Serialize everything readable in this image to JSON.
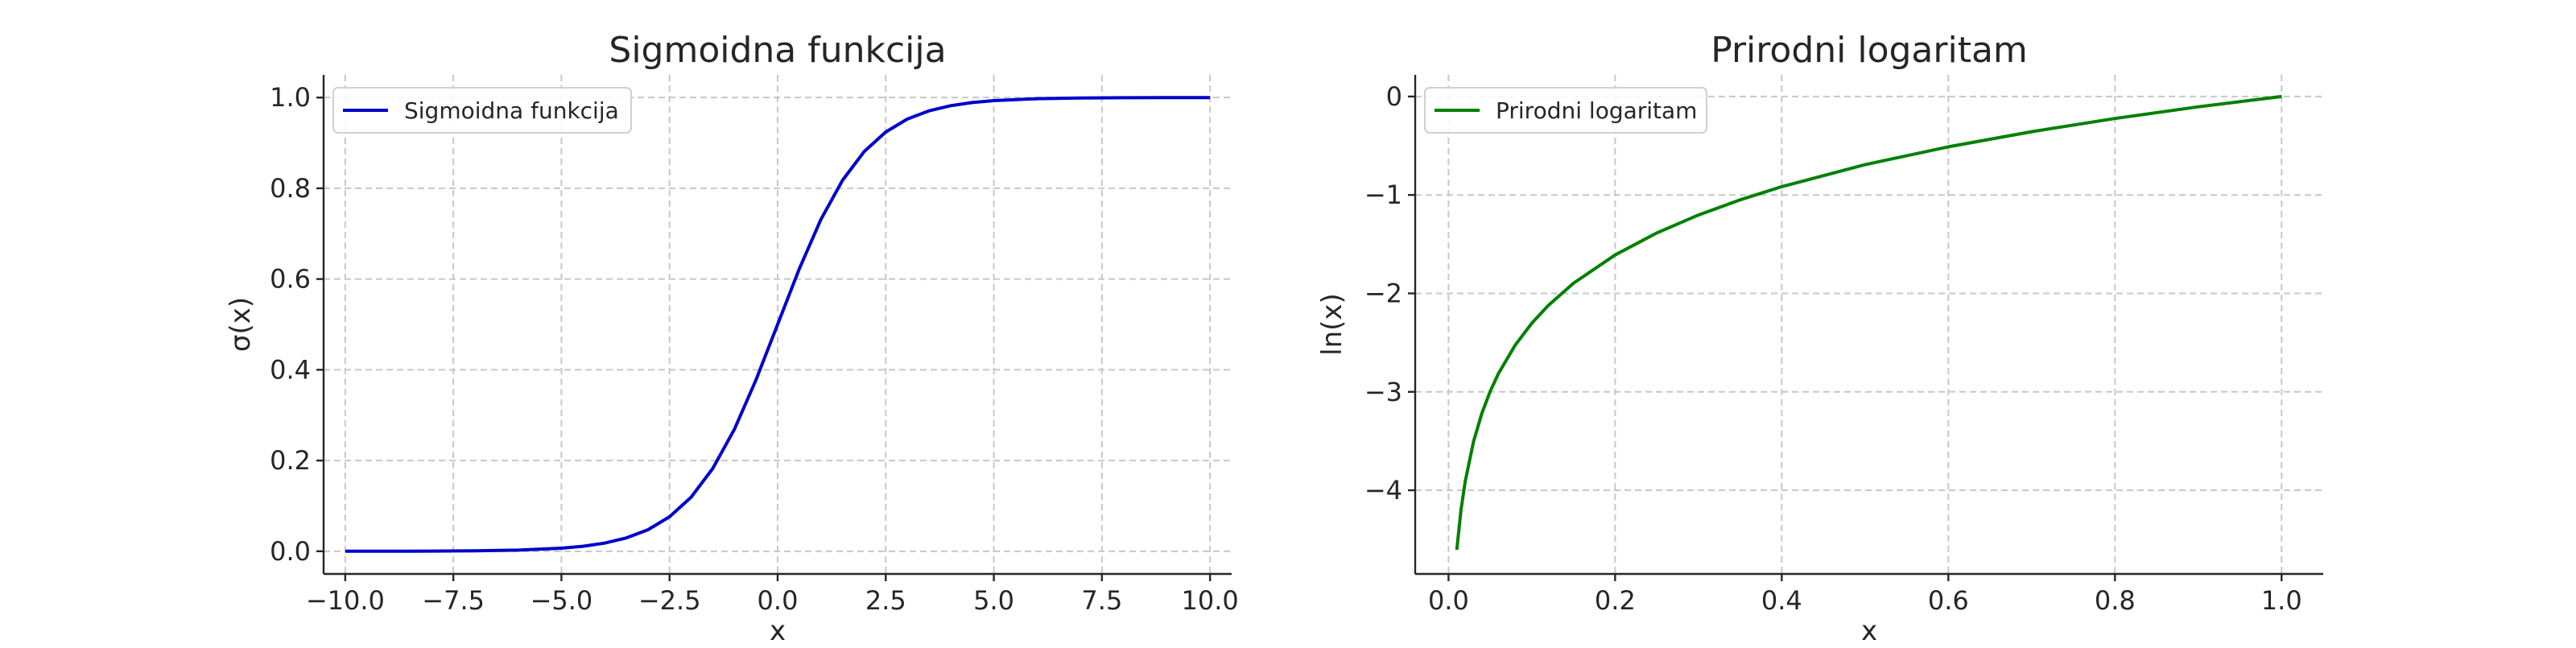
{
  "chart_data": [
    {
      "type": "line",
      "title": "Sigmoidna funkcija",
      "xlabel": "x",
      "ylabel": "σ(x)",
      "xlim": [
        -10.5,
        10.5
      ],
      "ylim": [
        -0.05,
        1.05
      ],
      "xticks": [
        -10.0,
        -7.5,
        -5.0,
        -2.5,
        0.0,
        2.5,
        5.0,
        7.5,
        10.0
      ],
      "xtick_labels": [
        "−10.0",
        "−7.5",
        "−5.0",
        "−2.5",
        "0.0",
        "2.5",
        "5.0",
        "7.5",
        "10.0"
      ],
      "yticks": [
        0.0,
        0.2,
        0.4,
        0.6,
        0.8,
        1.0
      ],
      "ytick_labels": [
        "0.0",
        "0.2",
        "0.4",
        "0.6",
        "0.8",
        "1.0"
      ],
      "grid": true,
      "legend": "upper-left",
      "series": [
        {
          "name": "Sigmoidna funkcija",
          "color": "#0000cc",
          "x": [
            -10,
            -9,
            -8,
            -7,
            -6,
            -5,
            -4.5,
            -4,
            -3.5,
            -3,
            -2.5,
            -2,
            -1.5,
            -1,
            -0.5,
            0,
            0.5,
            1,
            1.5,
            2,
            2.5,
            3,
            3.5,
            4,
            4.5,
            5,
            6,
            7,
            8,
            9,
            10
          ],
          "y": [
            0.0,
            0.0001,
            0.0003,
            0.0009,
            0.0025,
            0.0067,
            0.011,
            0.018,
            0.0293,
            0.0474,
            0.0759,
            0.1192,
            0.1824,
            0.2689,
            0.3775,
            0.5,
            0.6225,
            0.7311,
            0.8176,
            0.8808,
            0.9241,
            0.9526,
            0.9707,
            0.982,
            0.989,
            0.9933,
            0.9975,
            0.9991,
            0.9997,
            0.9999,
            1.0
          ]
        }
      ]
    },
    {
      "type": "line",
      "title": "Prirodni logaritam",
      "xlabel": "x",
      "ylabel": "ln(x)",
      "xlim": [
        -0.04,
        1.05
      ],
      "ylim": [
        -4.85,
        0.22
      ],
      "xticks": [
        0.0,
        0.2,
        0.4,
        0.6,
        0.8,
        1.0
      ],
      "xtick_labels": [
        "0.0",
        "0.2",
        "0.4",
        "0.6",
        "0.8",
        "1.0"
      ],
      "yticks": [
        0,
        -1,
        -2,
        -3,
        -4
      ],
      "ytick_labels": [
        "0",
        "−1",
        "−2",
        "−3",
        "−4"
      ],
      "grid": true,
      "legend": "upper-left",
      "series": [
        {
          "name": "Prirodni logaritam",
          "color": "#008000",
          "x": [
            0.01,
            0.015,
            0.02,
            0.03,
            0.04,
            0.05,
            0.06,
            0.08,
            0.1,
            0.12,
            0.15,
            0.2,
            0.25,
            0.3,
            0.35,
            0.4,
            0.5,
            0.6,
            0.7,
            0.8,
            0.9,
            1.0
          ],
          "y": [
            -4.605,
            -4.2,
            -3.912,
            -3.507,
            -3.219,
            -2.996,
            -2.813,
            -2.526,
            -2.303,
            -2.12,
            -1.897,
            -1.609,
            -1.386,
            -1.204,
            -1.05,
            -0.916,
            -0.693,
            -0.511,
            -0.357,
            -0.223,
            -0.105,
            0.0
          ]
        }
      ]
    }
  ]
}
